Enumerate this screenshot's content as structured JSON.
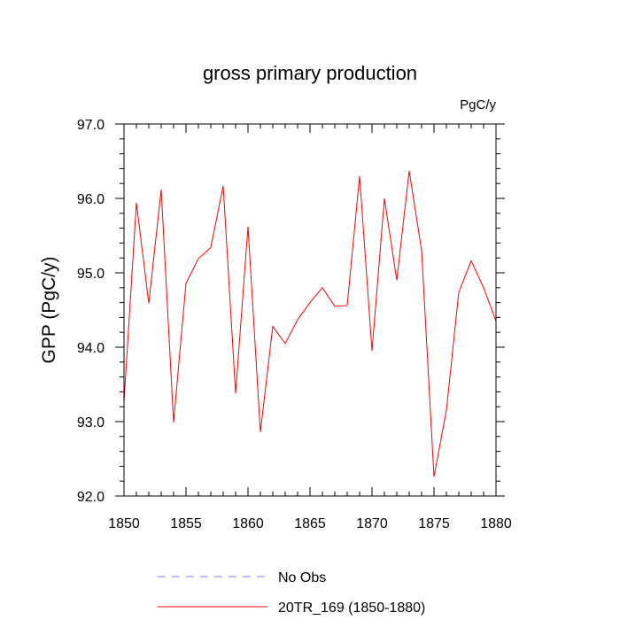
{
  "chart_data": {
    "type": "line",
    "title": "gross primary production",
    "units_label": "PgC/y",
    "xlabel": "",
    "ylabel": "GPP  (PgC/y)",
    "xlim": [
      1850,
      1880
    ],
    "ylim": [
      92.0,
      97.0
    ],
    "x_ticks": [
      1850,
      1855,
      1860,
      1865,
      1870,
      1875,
      1880
    ],
    "y_ticks": [
      "92.0",
      "93.0",
      "94.0",
      "95.0",
      "96.0",
      "97.0"
    ],
    "grid": false,
    "legend_position": "bottom",
    "series": [
      {
        "name": "No Obs",
        "color": "#7a7aff",
        "style": "dashed",
        "x": [],
        "y": []
      },
      {
        "name": "20TR_169 (1850-1880)",
        "color": "#ff0000",
        "style": "solid",
        "x": [
          1850,
          1851,
          1852,
          1853,
          1854,
          1855,
          1856,
          1857,
          1858,
          1859,
          1860,
          1861,
          1862,
          1863,
          1864,
          1865,
          1866,
          1867,
          1868,
          1869,
          1870,
          1871,
          1872,
          1873,
          1874,
          1875,
          1876,
          1877,
          1878,
          1879,
          1880
        ],
        "y": [
          93.27,
          95.94,
          94.59,
          96.12,
          92.99,
          94.86,
          95.19,
          95.34,
          96.17,
          93.38,
          95.62,
          92.86,
          94.28,
          94.05,
          94.37,
          94.6,
          94.8,
          94.55,
          94.56,
          96.3,
          93.95,
          96.0,
          94.9,
          96.37,
          95.3,
          92.26,
          93.15,
          94.74,
          95.16,
          94.8,
          94.35
        ]
      }
    ]
  }
}
